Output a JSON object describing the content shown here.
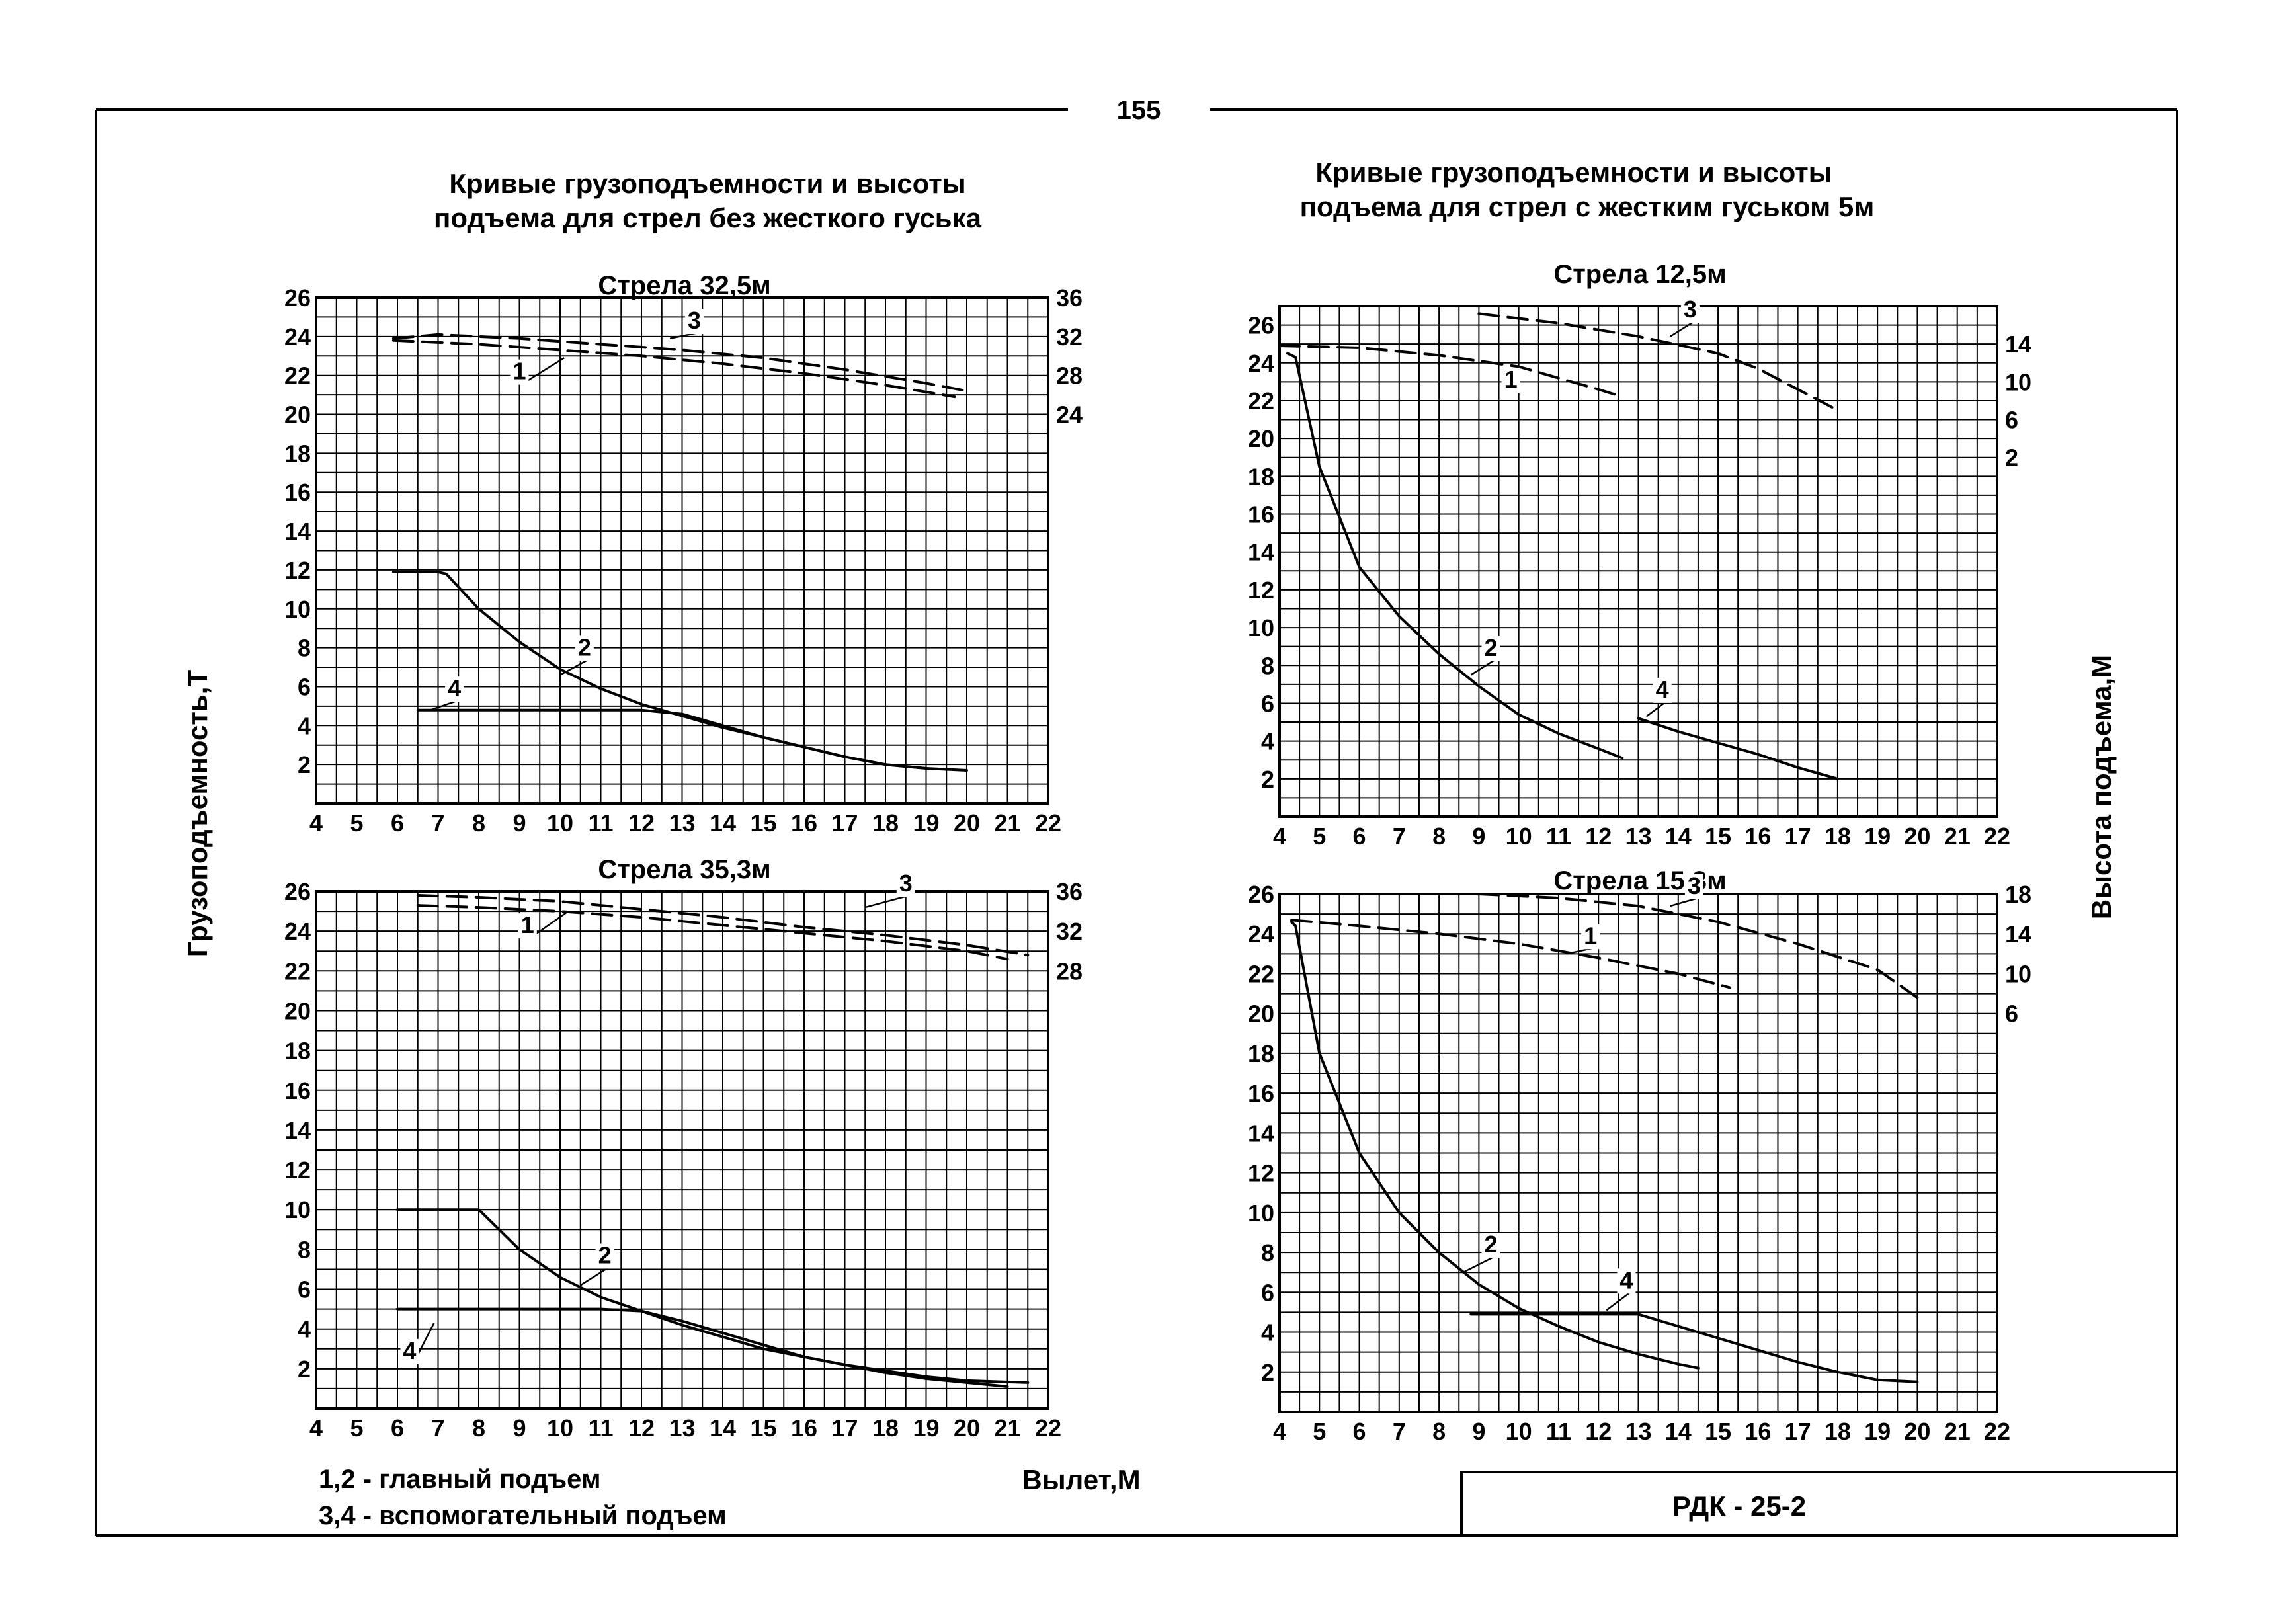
{
  "page_number": "155",
  "left_heading": {
    "line1": "Кривые грузоподъемности и высоты",
    "line2": "подъема для стрел без жесткого гуська"
  },
  "right_heading": {
    "line1": "Кривые грузоподъемности и высоты",
    "line2": "подъема для стрел с жестким  гуськом 5м"
  },
  "y_axis_label": "Грузоподъемность,Т",
  "right_axis_label": "Высота подъема,М",
  "x_axis_label": "Вылет,М",
  "legend": {
    "line1": "1,2 - главный подъем",
    "line2": "3,4 - вспомогательный подъем"
  },
  "stamp": "РДК - 25-2",
  "colors": {
    "ink": "#000000",
    "paper": "#ffffff"
  },
  "chart_data": [
    {
      "id": "tl",
      "type": "line",
      "title": "Стрела 32,5м",
      "x_ticks": [
        "4",
        "5",
        "6",
        "7",
        "8",
        "9",
        "10",
        "11",
        "12",
        "13",
        "14",
        "15",
        "16",
        "17",
        "18",
        "19",
        "20",
        "21",
        "22"
      ],
      "x_tick_values": [
        4,
        5,
        6,
        7,
        8,
        9,
        10,
        11,
        12,
        13,
        14,
        15,
        16,
        17,
        18,
        19,
        20,
        21,
        22
      ],
      "xlim": [
        4,
        22
      ],
      "ylim": [
        0,
        26
      ],
      "y_ticks": [
        "26",
        "24",
        "22",
        "20",
        "18",
        "16",
        "14",
        "12",
        "10",
        "8",
        "6",
        "4",
        "2"
      ],
      "y_tick_values": [
        26,
        24,
        22,
        20,
        18,
        16,
        14,
        12,
        10,
        8,
        6,
        4,
        2
      ],
      "right_ticks": [
        "36",
        "32",
        "28",
        "24"
      ],
      "right_tick_values": [
        26,
        24,
        22,
        20
      ],
      "series": [
        {
          "name": "1",
          "style": "dashed",
          "x": [
            5.9,
            8,
            10,
            12,
            14,
            16,
            18,
            19.7
          ],
          "y": [
            23.8,
            23.6,
            23.3,
            23.0,
            22.6,
            22.1,
            21.5,
            20.9
          ]
        },
        {
          "name": "3",
          "style": "dashed",
          "x": [
            5.9,
            7,
            9,
            11,
            13,
            15,
            17,
            19,
            20.0
          ],
          "y": [
            23.9,
            24.1,
            23.9,
            23.6,
            23.3,
            22.9,
            22.3,
            21.6,
            21.2
          ]
        },
        {
          "name": "2",
          "style": "solid",
          "x": [
            5.9,
            7.0,
            7.2,
            8,
            9,
            10,
            11,
            12,
            13,
            14,
            15,
            16,
            17,
            18,
            19,
            20.0
          ],
          "y": [
            11.9,
            11.9,
            11.8,
            10.0,
            8.3,
            6.9,
            5.9,
            5.1,
            4.5,
            3.9,
            3.4,
            2.9,
            2.4,
            2.0,
            1.8,
            1.7
          ]
        },
        {
          "name": "4",
          "style": "solid",
          "x": [
            6.5,
            8,
            10,
            12,
            13,
            14,
            15,
            16,
            17,
            18,
            19
          ],
          "y": [
            4.8,
            4.8,
            4.8,
            4.8,
            4.6,
            4.0,
            3.4,
            2.9,
            2.4,
            2.0,
            1.8
          ]
        }
      ],
      "annotations": [
        {
          "text": "1",
          "x": 9.0,
          "y": 21.8,
          "tx": 10.1,
          "ty": 22.9
        },
        {
          "text": "3",
          "x": 13.3,
          "y": 24.4,
          "tx": 12.7,
          "ty": 23.9
        },
        {
          "text": "2",
          "x": 10.6,
          "y": 7.6,
          "tx": 10.0,
          "ty": 6.6
        },
        {
          "text": "4",
          "x": 7.4,
          "y": 5.5,
          "tx": 6.8,
          "ty": 4.8
        }
      ]
    },
    {
      "id": "bl",
      "type": "line",
      "title": "Стрела 35,3м",
      "x_ticks": [
        "4",
        "5",
        "6",
        "7",
        "8",
        "9",
        "10",
        "11",
        "12",
        "13",
        "14",
        "15",
        "16",
        "17",
        "18",
        "19",
        "20",
        "21",
        "22"
      ],
      "x_tick_values": [
        4,
        5,
        6,
        7,
        8,
        9,
        10,
        11,
        12,
        13,
        14,
        15,
        16,
        17,
        18,
        19,
        20,
        21,
        22
      ],
      "xlim": [
        4,
        22
      ],
      "ylim": [
        0,
        26
      ],
      "y_ticks": [
        "26",
        "24",
        "22",
        "20",
        "18",
        "16",
        "14",
        "12",
        "10",
        "8",
        "6",
        "4",
        "2"
      ],
      "y_tick_values": [
        26,
        24,
        22,
        20,
        18,
        16,
        14,
        12,
        10,
        8,
        6,
        4,
        2
      ],
      "right_ticks": [
        "36",
        "32",
        "28"
      ],
      "right_tick_values": [
        26,
        24,
        22
      ],
      "series": [
        {
          "name": "1",
          "style": "dashed",
          "x": [
            6.5,
            8,
            10,
            12,
            14,
            16,
            18,
            20,
            21.0
          ],
          "y": [
            25.3,
            25.2,
            25.0,
            24.7,
            24.3,
            23.9,
            23.5,
            23.0,
            22.6
          ]
        },
        {
          "name": "3",
          "style": "dashed",
          "x": [
            6.5,
            8,
            10,
            12,
            14,
            16,
            18,
            20,
            21.5
          ],
          "y": [
            25.8,
            25.7,
            25.5,
            25.1,
            24.7,
            24.2,
            23.8,
            23.3,
            22.8
          ]
        },
        {
          "name": "2",
          "style": "solid",
          "x": [
            6,
            7,
            8.0,
            9,
            10,
            11,
            12,
            13,
            14,
            15,
            16,
            17,
            18,
            19,
            20,
            21.5
          ],
          "y": [
            10,
            10,
            10,
            8.0,
            6.6,
            5.6,
            4.9,
            4.2,
            3.6,
            3.0,
            2.6,
            2.2,
            1.9,
            1.6,
            1.4,
            1.3
          ]
        },
        {
          "name": "4",
          "style": "solid",
          "x": [
            6.0,
            8,
            10,
            11,
            12,
            13,
            14,
            15,
            16,
            17,
            18,
            19,
            20,
            21.0
          ],
          "y": [
            5.0,
            5.0,
            5.0,
            5.0,
            4.9,
            4.4,
            3.8,
            3.2,
            2.6,
            2.2,
            1.8,
            1.5,
            1.3,
            1.1
          ]
        }
      ],
      "annotations": [
        {
          "text": "1",
          "x": 9.2,
          "y": 23.9,
          "tx": 10.2,
          "ty": 25.0
        },
        {
          "text": "3",
          "x": 18.5,
          "y": 26.0,
          "tx": 17.5,
          "ty": 25.2
        },
        {
          "text": "2",
          "x": 11.1,
          "y": 7.3,
          "tx": 10.5,
          "ty": 6.2
        },
        {
          "text": "4",
          "x": 6.3,
          "y": 2.5,
          "tx": 6.9,
          "ty": 4.3
        }
      ]
    },
    {
      "id": "tr",
      "type": "line",
      "title": "Стрела 12,5м",
      "x_ticks": [
        "4",
        "5",
        "6",
        "7",
        "8",
        "9",
        "10",
        "11",
        "12",
        "13",
        "14",
        "15",
        "16",
        "17",
        "18",
        "19",
        "20",
        "21",
        "22"
      ],
      "x_tick_values": [
        4,
        5,
        6,
        7,
        8,
        9,
        10,
        11,
        12,
        13,
        14,
        15,
        16,
        17,
        18,
        19,
        20,
        21,
        22
      ],
      "xlim": [
        4,
        22
      ],
      "ylim": [
        0,
        27
      ],
      "y_ticks": [
        "26",
        "24",
        "22",
        "20",
        "18",
        "16",
        "14",
        "12",
        "10",
        "8",
        "6",
        "4",
        "2"
      ],
      "y_tick_values": [
        26,
        24,
        22,
        20,
        18,
        16,
        14,
        12,
        10,
        8,
        6,
        4,
        2
      ],
      "right_ticks": [
        "14",
        "10",
        "6",
        "2"
      ],
      "right_tick_values": [
        25,
        23,
        21,
        19
      ],
      "series": [
        {
          "name": "1",
          "style": "dashed",
          "x": [
            4.0,
            6,
            8,
            10,
            11,
            12,
            12.6
          ],
          "y": [
            24.9,
            24.8,
            24.4,
            23.8,
            23.2,
            22.6,
            22.2
          ]
        },
        {
          "name": "3",
          "style": "dashed",
          "x": [
            9.0,
            11,
            13,
            15,
            16,
            17,
            18.0
          ],
          "y": [
            26.6,
            26.1,
            25.4,
            24.5,
            23.7,
            22.6,
            21.5
          ]
        },
        {
          "name": "2",
          "style": "solid",
          "x": [
            4.2,
            4.4,
            5,
            6,
            7,
            8,
            9,
            10,
            11,
            12,
            12.6
          ],
          "y": [
            24.5,
            24.3,
            18.5,
            13.2,
            10.6,
            8.6,
            6.9,
            5.4,
            4.4,
            3.6,
            3.1
          ]
        },
        {
          "name": "4",
          "style": "solid",
          "x": [
            13.0,
            14,
            15,
            16,
            17,
            18.0
          ],
          "y": [
            5.2,
            4.5,
            3.9,
            3.3,
            2.6,
            2.0
          ]
        }
      ],
      "annotations": [
        {
          "text": "1",
          "x": 9.8,
          "y": 22.7,
          "tx": 9.7,
          "ty": 23.7
        },
        {
          "text": "3",
          "x": 14.3,
          "y": 26.4,
          "tx": 13.8,
          "ty": 25.4
        },
        {
          "text": "2",
          "x": 9.3,
          "y": 8.5,
          "tx": 8.8,
          "ty": 7.5
        },
        {
          "text": "4",
          "x": 13.6,
          "y": 6.3,
          "tx": 13.2,
          "ty": 5.3
        }
      ]
    },
    {
      "id": "br",
      "type": "line",
      "title": "Стрела 15,3м",
      "x_ticks": [
        "4",
        "5",
        "6",
        "7",
        "8",
        "9",
        "10",
        "11",
        "12",
        "13",
        "14",
        "15",
        "16",
        "17",
        "18",
        "19",
        "20",
        "21",
        "22"
      ],
      "x_tick_values": [
        4,
        5,
        6,
        7,
        8,
        9,
        10,
        11,
        12,
        13,
        14,
        15,
        16,
        17,
        18,
        19,
        20,
        21,
        22
      ],
      "xlim": [
        4,
        22
      ],
      "ylim": [
        0,
        26
      ],
      "y_ticks": [
        "26",
        "24",
        "22",
        "20",
        "18",
        "16",
        "14",
        "12",
        "10",
        "8",
        "6",
        "4",
        "2"
      ],
      "y_tick_values": [
        26,
        24,
        22,
        20,
        18,
        16,
        14,
        12,
        10,
        8,
        6,
        4,
        2
      ],
      "right_ticks": [
        "18",
        "14",
        "10",
        "6"
      ],
      "right_tick_values": [
        26,
        24,
        22,
        20
      ],
      "series": [
        {
          "name": "1",
          "style": "dashed",
          "x": [
            4.3,
            6,
            8,
            10,
            12,
            14,
            15.3
          ],
          "y": [
            24.7,
            24.4,
            24.0,
            23.5,
            22.8,
            22.0,
            21.3
          ]
        },
        {
          "name": "3",
          "style": "dashed",
          "x": [
            9.0,
            11,
            13,
            15,
            17,
            19,
            20.0
          ],
          "y": [
            26.0,
            25.8,
            25.4,
            24.6,
            23.5,
            22.2,
            20.8
          ]
        },
        {
          "name": "2",
          "style": "solid",
          "x": [
            4.3,
            4.4,
            5,
            6,
            7,
            8,
            9,
            10,
            11,
            12,
            13,
            14,
            14.5
          ],
          "y": [
            24.6,
            24.4,
            18.0,
            13.0,
            10.0,
            8.0,
            6.4,
            5.2,
            4.3,
            3.5,
            2.9,
            2.4,
            2.2
          ]
        },
        {
          "name": "4",
          "style": "solid",
          "x": [
            8.8,
            10,
            11,
            12,
            13.0,
            14,
            15,
            16,
            17,
            18,
            19,
            20.0
          ],
          "y": [
            4.9,
            4.9,
            4.9,
            4.9,
            4.9,
            4.3,
            3.7,
            3.1,
            2.5,
            2.0,
            1.6,
            1.5
          ]
        }
      ],
      "annotations": [
        {
          "text": "1",
          "x": 11.8,
          "y": 23.5,
          "tx": 11.2,
          "ty": 23.0
        },
        {
          "text": "3",
          "x": 14.4,
          "y": 26.0,
          "tx": 13.8,
          "ty": 25.4
        },
        {
          "text": "2",
          "x": 9.3,
          "y": 8.0,
          "tx": 8.6,
          "ty": 7.0
        },
        {
          "text": "4",
          "x": 12.7,
          "y": 6.2,
          "tx": 12.2,
          "ty": 5.1
        }
      ]
    }
  ]
}
